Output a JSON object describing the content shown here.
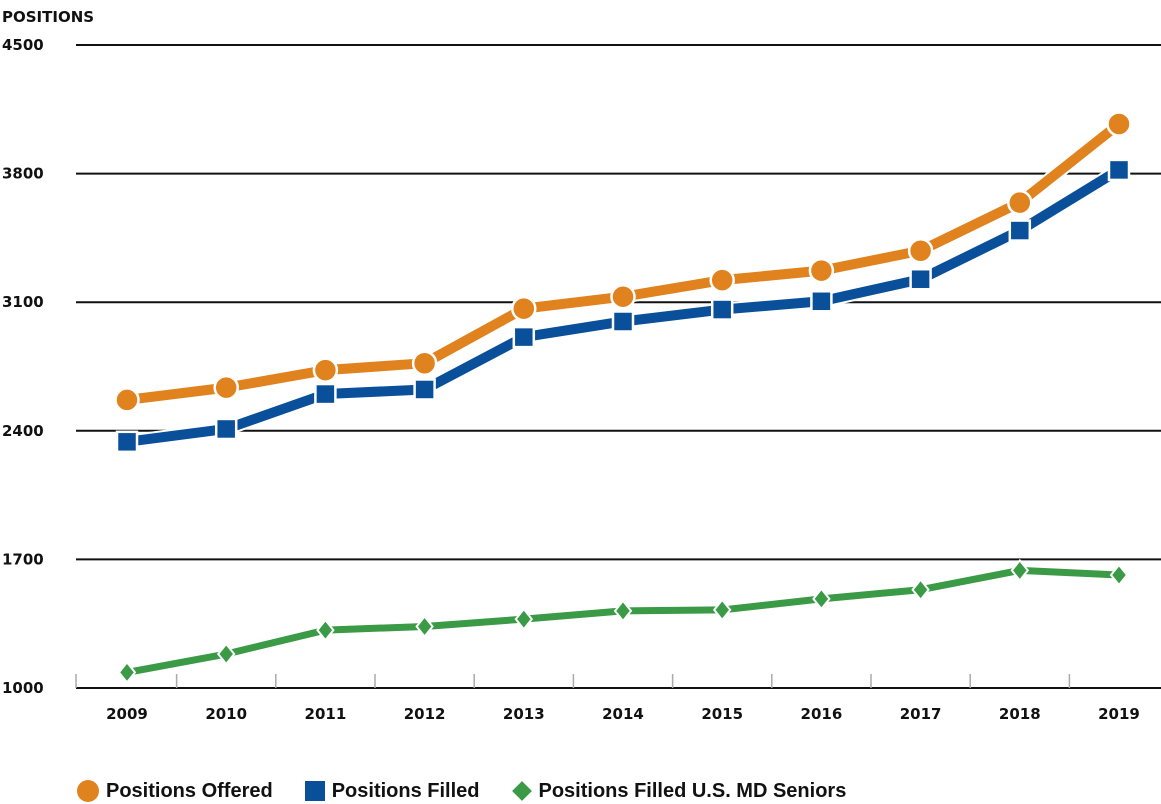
{
  "chart_data": {
    "type": "line",
    "ylabel": "POSITIONS",
    "xlabel": "",
    "ylim": [
      1000,
      4500
    ],
    "yticks": [
      1000,
      1700,
      2400,
      3100,
      3800,
      4500
    ],
    "categories": [
      "2009",
      "2010",
      "2011",
      "2012",
      "2013",
      "2014",
      "2015",
      "2016",
      "2017",
      "2018",
      "2019"
    ],
    "grid": "horizontal",
    "legend_position": "bottom",
    "series": [
      {
        "name": "Positions Offered",
        "color": "#e0821e",
        "marker": "circle",
        "values": [
          2568,
          2635,
          2730,
          2768,
          3065,
          3130,
          3220,
          3272,
          3380,
          3642,
          4070
        ]
      },
      {
        "name": "Positions Filled",
        "color": "#0a4f99",
        "marker": "square",
        "values": [
          2340,
          2410,
          2600,
          2625,
          2910,
          2995,
          3060,
          3105,
          3225,
          3490,
          3820
        ]
      },
      {
        "name": "Positions Filled U.S. MD Seniors",
        "color": "#3a9a45",
        "marker": "diamond",
        "values": [
          1085,
          1185,
          1315,
          1335,
          1375,
          1420,
          1425,
          1485,
          1535,
          1640,
          1615
        ]
      }
    ]
  }
}
